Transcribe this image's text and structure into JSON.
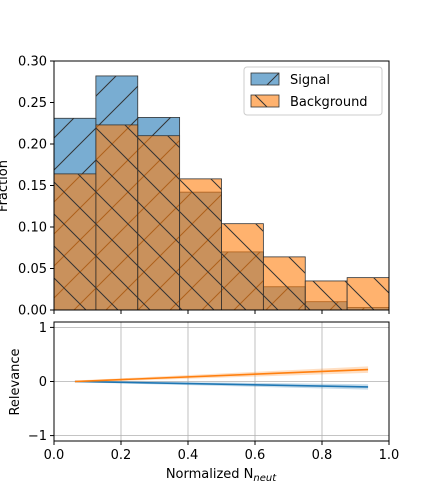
{
  "chart_data": [
    {
      "type": "histogram",
      "panel": "top",
      "ylabel": "Fraction",
      "xlim": [
        0.0,
        1.0
      ],
      "ylim": [
        0.0,
        0.3
      ],
      "bin_edges": [
        0.0,
        0.125,
        0.25,
        0.375,
        0.5,
        0.625,
        0.75,
        0.875,
        1.0
      ],
      "xticks": [],
      "yticks": [
        "0.00",
        "0.05",
        "0.10",
        "0.15",
        "0.20",
        "0.25",
        "0.30"
      ],
      "legend": "top-right",
      "series": [
        {
          "name": "Signal",
          "color": "#1f77b4",
          "hatch": "/",
          "values": [
            0.231,
            0.282,
            0.232,
            0.142,
            0.07,
            0.028,
            0.01,
            0.003
          ]
        },
        {
          "name": "Background",
          "color": "#ff7f0e",
          "hatch": "\\",
          "values": [
            0.164,
            0.223,
            0.21,
            0.158,
            0.104,
            0.064,
            0.035,
            0.039
          ]
        }
      ]
    },
    {
      "type": "line",
      "panel": "bottom",
      "xlabel": "Normalized N",
      "xlabel_sub": "neut",
      "ylabel": "Relevance",
      "xlim": [
        0.0,
        1.0
      ],
      "ylim": [
        -1.1,
        1.1
      ],
      "xticks": [
        "0.0",
        "0.2",
        "0.4",
        "0.6",
        "0.8",
        "1.0"
      ],
      "yticks": [
        "1",
        "0",
        "−1"
      ],
      "grid": true,
      "series": [
        {
          "name": "Signal",
          "color": "#1f77b4",
          "x": [
            0.0625,
            0.9375
          ],
          "y": [
            0.0,
            -0.1
          ],
          "band": 0.05
        },
        {
          "name": "Background",
          "color": "#ff7f0e",
          "x": [
            0.0625,
            0.9375
          ],
          "y": [
            0.0,
            0.22
          ],
          "band": 0.06
        }
      ]
    }
  ]
}
